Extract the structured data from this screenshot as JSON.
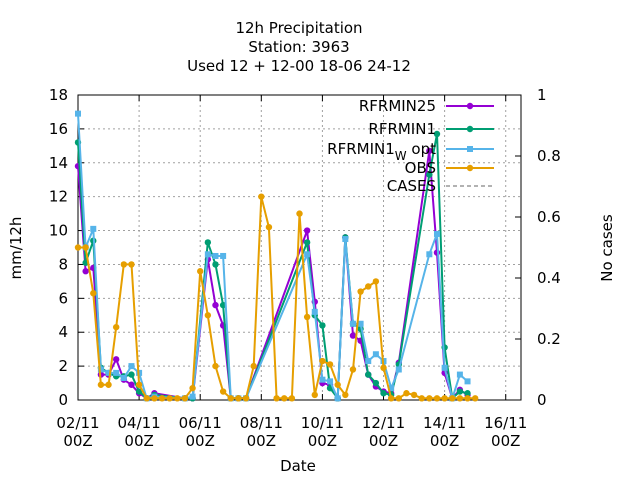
{
  "chart_data": {
    "type": "line",
    "title": [
      "12h Precipitation",
      "Station:     3963",
      "Used  12 + 12-00 18-06 24-12"
    ],
    "xlabel": "Date",
    "ylabel": "mm/12h",
    "y2label": "No cases",
    "xlim": [
      0,
      14.5
    ],
    "ylim": [
      0,
      18
    ],
    "y2lim": [
      0,
      1
    ],
    "x_unit": "days since 02/11 00Z",
    "x_ticks": [
      {
        "x": 0,
        "line1": "02/11",
        "line2": "00Z"
      },
      {
        "x": 2,
        "line1": "04/11",
        "line2": "00Z"
      },
      {
        "x": 4,
        "line1": "06/11",
        "line2": "00Z"
      },
      {
        "x": 6,
        "line1": "08/11",
        "line2": "00Z"
      },
      {
        "x": 8,
        "line1": "10/11",
        "line2": "00Z"
      },
      {
        "x": 10,
        "line1": "12/11",
        "line2": "00Z"
      },
      {
        "x": 12,
        "line1": "14/11",
        "line2": "00Z"
      },
      {
        "x": 14,
        "line1": "16/11",
        "line2": "00Z"
      }
    ],
    "y_ticks": [
      "0",
      "2",
      "4",
      "6",
      "8",
      "10",
      "12",
      "14",
      "16",
      "18"
    ],
    "y2_ticks": [
      "0",
      "0.2",
      "0.4",
      "0.6",
      "0.8",
      "1"
    ],
    "grid": true,
    "legend_position": "top-right",
    "series": [
      {
        "name": "RFRMIN25",
        "color": "#9400d3",
        "marker": "circle",
        "x": [
          0,
          0.25,
          0.5,
          0.75,
          1.0,
          1.25,
          1.5,
          1.75,
          2.0,
          2.25,
          2.5,
          3.5,
          3.75,
          4.25,
          4.5,
          4.75,
          5.0,
          5.25,
          5.5,
          7.5,
          7.75,
          8.0,
          8.25,
          8.5,
          8.75,
          9.0,
          9.25,
          9.5,
          9.75,
          10.0,
          10.25,
          10.5,
          11.5,
          11.75,
          12.0,
          12.25,
          12.5,
          12.75
        ],
        "y": [
          13.8,
          7.6,
          7.8,
          1.5,
          1.5,
          2.4,
          1.2,
          0.9,
          0.4,
          0.1,
          0.4,
          0.1,
          0.1,
          8.3,
          5.6,
          4.4,
          0.1,
          0.1,
          0.1,
          10.0,
          5.8,
          1.0,
          0.9,
          0.1,
          9.6,
          3.8,
          3.5,
          1.5,
          0.8,
          0.5,
          0.4,
          2.2,
          14.7,
          8.7,
          1.6,
          0.1,
          0.6,
          0.3
        ]
      },
      {
        "name": "RFRMIN1",
        "color": "#009e73",
        "marker": "circle",
        "x": [
          0,
          0.25,
          0.5,
          0.75,
          1.0,
          1.25,
          1.5,
          1.75,
          2.0,
          2.25,
          2.5,
          3.5,
          3.75,
          4.25,
          4.5,
          4.75,
          5.0,
          5.25,
          5.5,
          7.5,
          7.75,
          8.0,
          8.25,
          8.5,
          8.75,
          9.0,
          9.25,
          9.5,
          9.75,
          10.0,
          10.25,
          10.5,
          11.5,
          11.75,
          12.0,
          12.25,
          12.5,
          12.75
        ],
        "y": [
          15.2,
          8.1,
          9.4,
          1.9,
          1.6,
          1.4,
          1.4,
          1.5,
          0.5,
          0.1,
          0.3,
          0.1,
          0.1,
          9.3,
          8.0,
          5.6,
          0.1,
          0.1,
          0.1,
          9.3,
          5.0,
          4.4,
          0.7,
          0.1,
          9.6,
          4.5,
          4.2,
          1.5,
          1.0,
          0.4,
          0.3,
          2.1,
          13.3,
          15.7,
          3.1,
          0.1,
          0.5,
          0.4
        ]
      },
      {
        "name": "RFRMIN1_W opt",
        "color": "#56b4e9",
        "marker": "square",
        "x": [
          0,
          0.25,
          0.5,
          0.75,
          1.0,
          1.25,
          1.5,
          1.75,
          2.0,
          2.25,
          2.5,
          3.5,
          3.75,
          4.25,
          4.5,
          4.75,
          5.0,
          5.25,
          5.5,
          7.5,
          7.75,
          8.0,
          8.25,
          8.5,
          8.75,
          9.0,
          9.25,
          9.5,
          9.75,
          10.0,
          10.25,
          10.5,
          11.5,
          11.75,
          12.0,
          12.25,
          12.5,
          12.75
        ],
        "y": [
          16.9,
          9.0,
          10.1,
          1.8,
          1.6,
          1.6,
          1.3,
          2.0,
          1.6,
          0.1,
          0.2,
          0.1,
          0.2,
          8.6,
          8.5,
          8.5,
          0.1,
          0.1,
          0.1,
          8.6,
          5.2,
          1.2,
          1.1,
          0.1,
          9.5,
          4.5,
          4.5,
          2.3,
          2.7,
          2.3,
          0.7,
          1.8,
          8.6,
          9.8,
          1.9,
          0.1,
          1.5,
          1.1
        ]
      },
      {
        "name": "OBS",
        "color": "#e69f00",
        "marker": "circle",
        "x": [
          0,
          0.25,
          0.5,
          0.75,
          1.0,
          1.25,
          1.5,
          1.75,
          2.0,
          2.25,
          2.5,
          2.75,
          3.0,
          3.25,
          3.5,
          3.75,
          4.0,
          4.25,
          4.5,
          4.75,
          5.0,
          5.25,
          5.5,
          5.75,
          6.0,
          6.25,
          6.5,
          6.75,
          7.0,
          7.25,
          7.5,
          7.75,
          8.0,
          8.25,
          8.5,
          8.75,
          9.0,
          9.25,
          9.5,
          9.75,
          10.0,
          10.25,
          10.5,
          10.75,
          11.0,
          11.25,
          11.5,
          11.75,
          12.0,
          12.25,
          12.5,
          12.75,
          13.0
        ],
        "y": [
          9.0,
          9.0,
          6.3,
          0.9,
          0.9,
          4.3,
          8.0,
          8.0,
          0.9,
          0.1,
          0.1,
          0.1,
          0.1,
          0.1,
          0.1,
          0.7,
          7.6,
          5.0,
          2.0,
          0.5,
          0.1,
          0.1,
          0.1,
          2.0,
          12.0,
          10.2,
          0.1,
          0.1,
          0.1,
          11.0,
          4.9,
          0.3,
          2.3,
          2.1,
          0.9,
          0.3,
          1.8,
          6.4,
          6.7,
          7.0,
          1.9,
          0.1,
          0.1,
          0.4,
          0.3,
          0.1,
          0.1,
          0.1,
          0.1,
          0.1,
          0.1,
          0.1,
          0.1
        ]
      }
    ],
    "legend_extra": {
      "name": "CASES",
      "color": "#999999",
      "style": "dashed"
    }
  }
}
